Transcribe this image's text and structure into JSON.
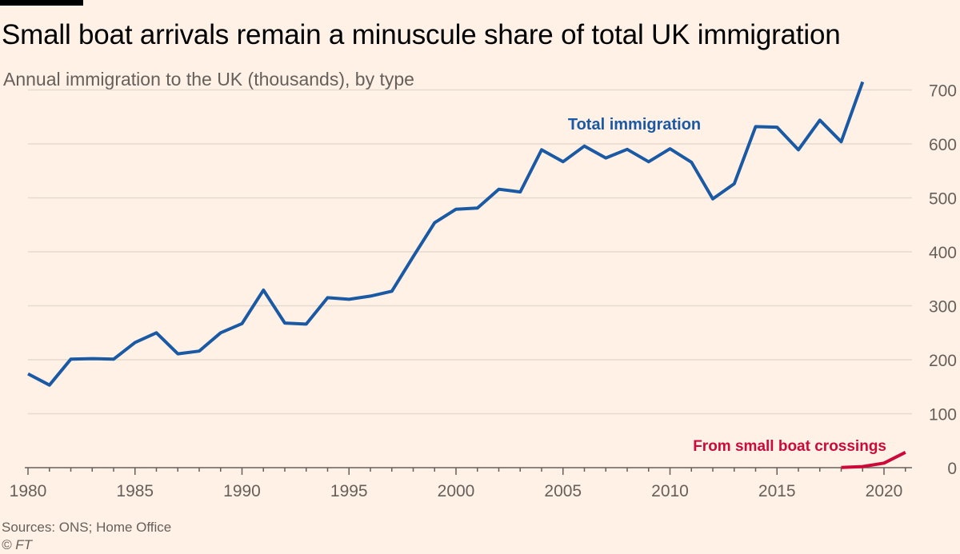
{
  "chart_data": {
    "type": "line",
    "title": "Small boat arrivals remain a minuscule share of total UK immigration",
    "subtitle": "Annual immigration to the UK (thousands), by type",
    "xlabel": "",
    "ylabel": "",
    "xlim": [
      1980,
      2021
    ],
    "ylim": [
      0,
      720
    ],
    "x_ticks": [
      1980,
      1985,
      1990,
      1995,
      2000,
      2005,
      2010,
      2015,
      2020
    ],
    "y_ticks": [
      0,
      100,
      200,
      300,
      400,
      500,
      600,
      700
    ],
    "y_axis_position": "right",
    "grid": "horizontal",
    "series": [
      {
        "name": "Total immigration",
        "label": "Total immigration",
        "color": "#1a59a4",
        "x": [
          1980,
          1981,
          1982,
          1983,
          1984,
          1985,
          1986,
          1987,
          1988,
          1989,
          1990,
          1991,
          1992,
          1993,
          1994,
          1995,
          1996,
          1997,
          1998,
          1999,
          2000,
          2001,
          2002,
          2003,
          2004,
          2005,
          2006,
          2007,
          2008,
          2009,
          2010,
          2011,
          2012,
          2013,
          2014,
          2015,
          2016,
          2017,
          2018,
          2019
        ],
        "values": [
          174,
          153,
          201,
          202,
          201,
          232,
          250,
          211,
          216,
          250,
          267,
          329,
          268,
          266,
          315,
          312,
          318,
          327,
          391,
          454,
          479,
          481,
          516,
          511,
          589,
          567,
          596,
          574,
          590,
          567,
          591,
          566,
          498,
          526,
          632,
          631,
          589,
          644,
          604,
          715
        ]
      },
      {
        "name": "From small boat crossings",
        "label": "From small boat crossings",
        "color": "#cc0a3a",
        "x": [
          2018,
          2019,
          2020,
          2021
        ],
        "values": [
          0.3,
          2,
          8.5,
          28.5
        ]
      }
    ]
  },
  "footer": {
    "source": "Sources: ONS; Home Office",
    "copyright": "© FT"
  },
  "colors": {
    "background": "#fff1e5",
    "grid": "#e6d9ce",
    "axis": "#66605c",
    "tick_text": "#66605c"
  }
}
